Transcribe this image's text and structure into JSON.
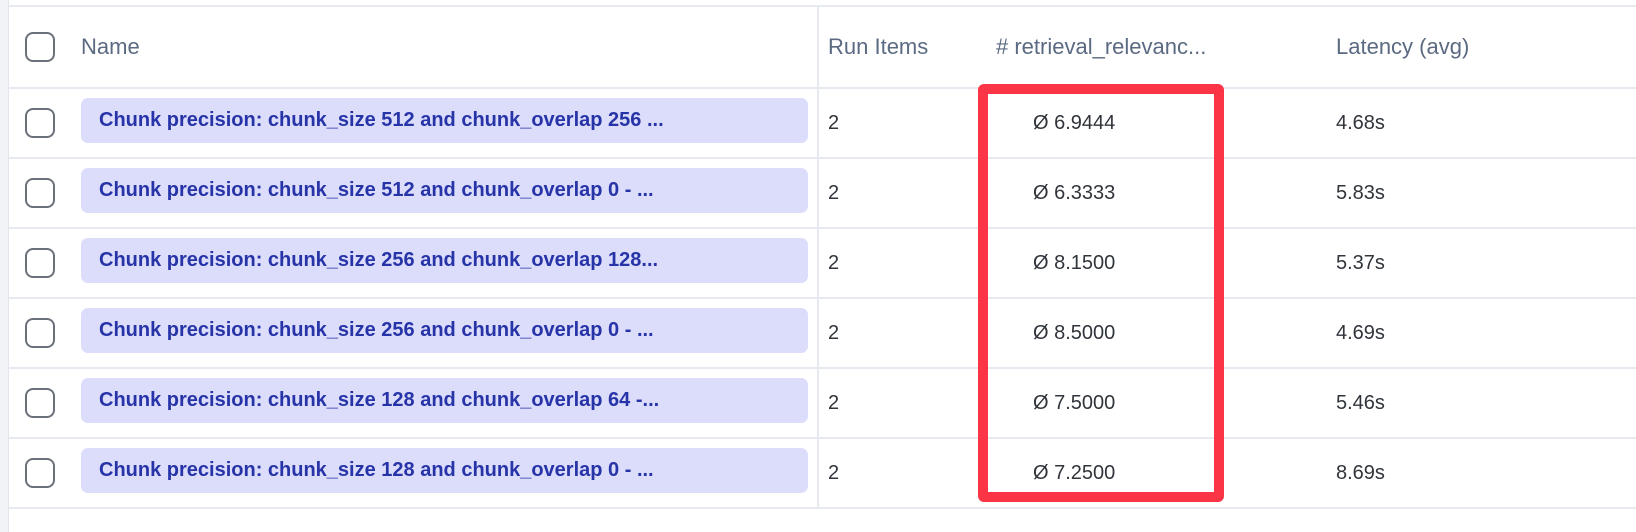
{
  "table": {
    "columns": [
      "Name",
      "Run Items",
      "# retrieval_relevanc...",
      "Latency (avg)"
    ],
    "rows": [
      {
        "name": "Chunk precision: chunk_size 512 and chunk_overlap 256 ...",
        "run_items": "2",
        "retrieval_relevance": "Ø 6.9444",
        "latency": "4.68s"
      },
      {
        "name": "Chunk precision: chunk_size 512 and chunk_overlap 0 - ...",
        "run_items": "2",
        "retrieval_relevance": "Ø 6.3333",
        "latency": "5.83s"
      },
      {
        "name": "Chunk precision: chunk_size 256 and chunk_overlap 128...",
        "run_items": "2",
        "retrieval_relevance": "Ø 8.1500",
        "latency": "5.37s"
      },
      {
        "name": "Chunk precision: chunk_size 256 and chunk_overlap 0 - ...",
        "run_items": "2",
        "retrieval_relevance": "Ø 8.5000",
        "latency": "4.69s"
      },
      {
        "name": "Chunk precision: chunk_size 128 and chunk_overlap 64 -...",
        "run_items": "2",
        "retrieval_relevance": "Ø 7.5000",
        "latency": "5.46s"
      },
      {
        "name": "Chunk precision: chunk_size 128 and chunk_overlap 0 - ...",
        "run_items": "2",
        "retrieval_relevance": "Ø 7.2500",
        "latency": "8.69s"
      }
    ]
  },
  "highlight_color": "#fb3446"
}
